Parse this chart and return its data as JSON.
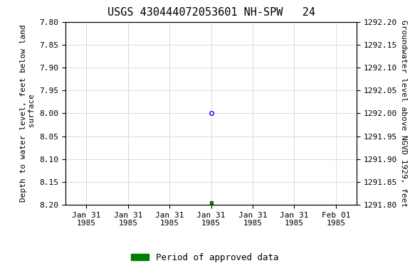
{
  "title": "USGS 430444072053601 NH-SPW   24",
  "ylabel_left": "Depth to water level, feet below land\n surface",
  "ylabel_right": "Groundwater level above NGVD 1929, feet",
  "ylim_left": [
    7.8,
    8.2
  ],
  "ylim_right": [
    1292.2,
    1291.8
  ],
  "yticks_left": [
    7.8,
    7.85,
    7.9,
    7.95,
    8.0,
    8.05,
    8.1,
    8.15,
    8.2
  ],
  "yticks_right": [
    1292.2,
    1292.15,
    1292.1,
    1292.05,
    1292.0,
    1291.95,
    1291.9,
    1291.85,
    1291.8
  ],
  "xtick_positions": [
    0,
    1,
    2,
    3,
    4,
    5,
    6
  ],
  "xtick_labels": [
    "Jan 31\n1985",
    "Jan 31\n1985",
    "Jan 31\n1985",
    "Jan 31\n1985",
    "Jan 31\n1985",
    "Jan 31\n1985",
    "Feb 01\n1985"
  ],
  "data_blue_x": 3,
  "data_blue_y": 8.0,
  "data_green_x": 3,
  "data_green_y": 8.195,
  "xlim": [
    -0.5,
    6.5
  ],
  "grid_color": "#cccccc",
  "background_color": "#ffffff",
  "title_fontsize": 11,
  "axis_label_fontsize": 8,
  "tick_fontsize": 8,
  "legend_label": "Period of approved data",
  "legend_color": "#008000"
}
